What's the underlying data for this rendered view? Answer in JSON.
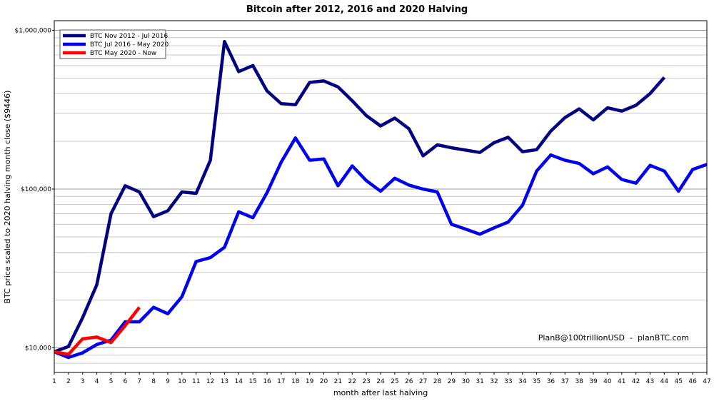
{
  "chart_data": {
    "type": "line",
    "title": "Bitcoin after 2012, 2016 and 2020 Halving",
    "xlabel": "month after last halving",
    "ylabel": "BTC price scaled to 2020 halving month close ($9446)",
    "y_scale": "log",
    "ylim": [
      7000,
      1150000
    ],
    "xlim": [
      1,
      47
    ],
    "y_ticks": [
      {
        "value": 10000,
        "label": "$10,000"
      },
      {
        "value": 100000,
        "label": "$100,000"
      },
      {
        "value": 1000000,
        "label": "$1,000,000"
      }
    ],
    "x_ticks": [
      1,
      2,
      3,
      4,
      5,
      6,
      7,
      8,
      9,
      10,
      11,
      12,
      13,
      14,
      15,
      16,
      17,
      18,
      19,
      20,
      21,
      22,
      23,
      24,
      25,
      26,
      27,
      28,
      29,
      30,
      31,
      32,
      33,
      34,
      35,
      36,
      37,
      38,
      39,
      40,
      41,
      42,
      43,
      44,
      45,
      46,
      47
    ],
    "grid": true,
    "legend_position": "top-left",
    "annotation": "PlanB@100trillionUSD  -  planBTC.com",
    "series": [
      {
        "name": "BTC Nov 2012 - Jul 2016",
        "color": "#000080",
        "x": [
          1,
          2,
          3,
          4,
          5,
          6,
          7,
          8,
          9,
          10,
          11,
          12,
          13,
          14,
          15,
          16,
          17,
          18,
          19,
          20,
          21,
          22,
          23,
          24,
          25,
          26,
          27,
          28,
          29,
          30,
          31,
          32,
          33,
          34,
          35,
          36,
          37,
          38,
          39,
          40,
          41,
          42,
          43,
          44
        ],
        "values": [
          9446,
          10200,
          15500,
          25000,
          70000,
          105000,
          96000,
          67000,
          73000,
          96000,
          94000,
          152000,
          850000,
          550000,
          600000,
          415000,
          345000,
          340000,
          470000,
          480000,
          440000,
          360000,
          290000,
          250000,
          280000,
          240000,
          162000,
          190000,
          182000,
          176000,
          170000,
          196000,
          212000,
          172000,
          177000,
          232000,
          282000,
          320000,
          273000,
          325000,
          310000,
          337000,
          400000,
          505000
        ]
      },
      {
        "name": "BTC Jul 2016 - May 2020",
        "color": "#0000ee",
        "x": [
          1,
          2,
          3,
          4,
          5,
          6,
          7,
          8,
          9,
          10,
          11,
          12,
          13,
          14,
          15,
          16,
          17,
          18,
          19,
          20,
          21,
          22,
          23,
          24,
          25,
          26,
          27,
          28,
          29,
          30,
          31,
          32,
          33,
          34,
          35,
          36,
          37,
          38,
          39,
          40,
          41,
          42,
          43,
          44,
          45,
          46,
          47
        ],
        "values": [
          9446,
          8700,
          9300,
          10500,
          11200,
          14600,
          14600,
          18000,
          16400,
          21000,
          35000,
          37000,
          43000,
          72000,
          66000,
          95000,
          148000,
          210000,
          152000,
          155000,
          105000,
          140000,
          113000,
          97000,
          117000,
          106000,
          100000,
          96000,
          60000,
          56000,
          52000,
          57000,
          62000,
          79000,
          130000,
          164000,
          152000,
          145000,
          125000,
          138000,
          115000,
          109000,
          141000,
          130000,
          97000,
          133000,
          143000
        ]
      },
      {
        "name": "BTC May 2020 - Now",
        "color": "#ff0000",
        "x": [
          1,
          2,
          3,
          4,
          5,
          6,
          7
        ],
        "values": [
          9446,
          9100,
          11400,
          11700,
          10800,
          13800,
          18000
        ]
      }
    ]
  }
}
